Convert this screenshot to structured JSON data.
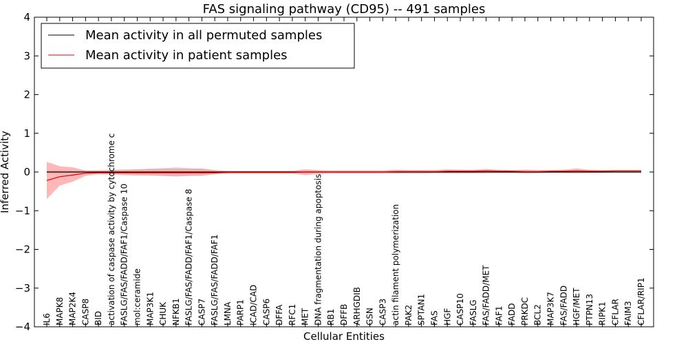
{
  "chart_data": {
    "type": "line",
    "title": "FAS signaling pathway (CD95) -- 491 samples",
    "xlabel": "Cellular Entities",
    "ylabel": "Inferred Activity",
    "ylim": [
      -4,
      4
    ],
    "yticks": [
      -4,
      -3,
      -2,
      -1,
      0,
      1,
      2,
      3,
      4
    ],
    "ytick_labels": [
      "−4",
      "−3",
      "−2",
      "−1",
      "0",
      "1",
      "2",
      "3",
      "4"
    ],
    "legend_position": "top-left",
    "categories": [
      "IL6",
      "MAPK8",
      "MAP2K4",
      "CASP8",
      "BID",
      "activation of caspase activity by cytochrome c",
      "FASLG/FAS/FADD/FAF1/Caspase 10",
      "mol:ceramide",
      "MAP3K1",
      "CHUK",
      "NFKB1",
      "FASLG/FAS/FADD/FAF1/Caspase 8",
      "CASP7",
      "FASLG/FAS/FADD/FAF1",
      "LMNA",
      "PARP1",
      "ICAD/CAD",
      "CASP6",
      "DFFA",
      "RFC1",
      "MET",
      "DNA fragmentation during apoptosis",
      "RB1",
      "DFFB",
      "ARHGDIB",
      "GSN",
      "CASP3",
      "actin filament polymerization",
      "PAK2",
      "SPTAN1",
      "FAS",
      "HGF",
      "CASP10",
      "FASLG",
      "FAS/FADD/MET",
      "FAF1",
      "FADD",
      "PRKDC",
      "BCL2",
      "MAP3K7",
      "FAS/FADD",
      "HGF/MET",
      "PTPN13",
      "RIPK1",
      "CFLAR",
      "FAIM3",
      "CFLAR/RIP1"
    ],
    "series": [
      {
        "name": "Mean activity in all permuted samples",
        "color": "#000000",
        "band_color": "#bbbbbb",
        "values": [
          0,
          0,
          0,
          0,
          0,
          0,
          0,
          0,
          0,
          0,
          0,
          0,
          0,
          0,
          0,
          0,
          0,
          0,
          0,
          0,
          0,
          0,
          0,
          0,
          0,
          0,
          0,
          0,
          0,
          0,
          0,
          0,
          0,
          0,
          0,
          0,
          0,
          0,
          0,
          0,
          0,
          0,
          0,
          0,
          0,
          0,
          0
        ],
        "upper": [
          0.05,
          0.05,
          0.04,
          0.04,
          0.04,
          0.05,
          0.06,
          0.07,
          0.09,
          0.1,
          0.12,
          0.1,
          0.08,
          0.04,
          0.03,
          0.03,
          0.03,
          0.03,
          0.03,
          0.03,
          0.05,
          0.03,
          0.03,
          0.03,
          0.03,
          0.03,
          0.03,
          0.03,
          0.03,
          0.03,
          0.03,
          0.03,
          0.03,
          0.03,
          0.03,
          0.03,
          0.03,
          0.03,
          0.03,
          0.03,
          0.03,
          0.03,
          0.03,
          0.03,
          0.03,
          0.03,
          0.03
        ],
        "lower": [
          -0.05,
          -0.05,
          -0.04,
          -0.04,
          -0.04,
          -0.05,
          -0.06,
          -0.07,
          -0.09,
          -0.1,
          -0.12,
          -0.1,
          -0.08,
          -0.04,
          -0.03,
          -0.03,
          -0.03,
          -0.03,
          -0.03,
          -0.03,
          -0.05,
          -0.03,
          -0.03,
          -0.03,
          -0.03,
          -0.03,
          -0.03,
          -0.03,
          -0.03,
          -0.03,
          -0.03,
          -0.03,
          -0.03,
          -0.03,
          -0.03,
          -0.03,
          -0.03,
          -0.03,
          -0.03,
          -0.03,
          -0.03,
          -0.03,
          -0.03,
          -0.03,
          -0.03,
          -0.03,
          -0.03
        ]
      },
      {
        "name": "Mean activity in patient samples",
        "color": "#dd0000",
        "band_color": "#ff9999",
        "values": [
          -0.22,
          -0.12,
          -0.08,
          -0.03,
          -0.02,
          -0.02,
          -0.02,
          -0.02,
          -0.02,
          -0.02,
          -0.02,
          -0.02,
          -0.02,
          -0.02,
          -0.01,
          -0.01,
          -0.01,
          -0.01,
          -0.01,
          -0.01,
          0.0,
          0.0,
          0.0,
          0.0,
          0.0,
          0.0,
          0.0,
          0.01,
          0.01,
          0.01,
          0.01,
          0.02,
          0.02,
          0.02,
          0.03,
          0.02,
          0.02,
          0.01,
          0.01,
          0.02,
          0.02,
          0.03,
          0.02,
          0.02,
          0.03,
          0.03,
          0.03
        ],
        "upper": [
          0.26,
          0.15,
          0.12,
          0.04,
          0.04,
          0.05,
          0.06,
          0.07,
          0.07,
          0.08,
          0.08,
          0.08,
          0.09,
          0.05,
          0.03,
          0.03,
          0.03,
          0.03,
          0.03,
          0.03,
          0.07,
          0.05,
          0.04,
          0.04,
          0.04,
          0.04,
          0.04,
          0.06,
          0.05,
          0.05,
          0.05,
          0.07,
          0.06,
          0.06,
          0.08,
          0.06,
          0.05,
          0.06,
          0.05,
          0.05,
          0.06,
          0.09,
          0.06,
          0.05,
          0.05,
          0.05,
          0.05
        ],
        "lower": [
          -0.7,
          -0.35,
          -0.25,
          -0.1,
          -0.06,
          -0.07,
          -0.08,
          -0.09,
          -0.09,
          -0.1,
          -0.1,
          -0.1,
          -0.1,
          -0.06,
          -0.04,
          -0.04,
          -0.04,
          -0.04,
          -0.04,
          -0.04,
          -0.08,
          -0.05,
          -0.04,
          -0.04,
          -0.04,
          -0.04,
          -0.04,
          -0.04,
          -0.04,
          -0.04,
          -0.03,
          -0.03,
          -0.03,
          -0.03,
          -0.03,
          -0.02,
          -0.02,
          -0.04,
          -0.03,
          -0.02,
          -0.02,
          -0.03,
          -0.02,
          -0.01,
          0.0,
          0.0,
          0.0
        ]
      }
    ]
  }
}
